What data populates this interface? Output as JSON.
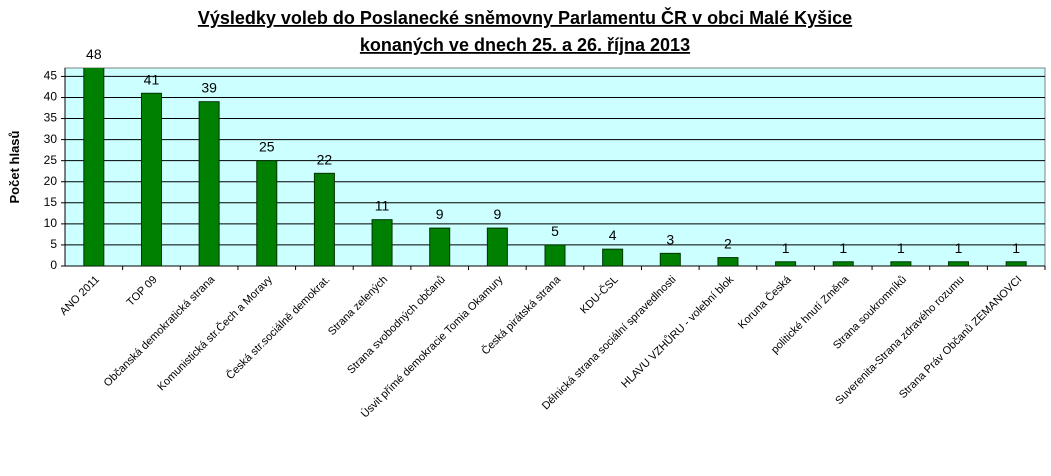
{
  "chart_data": {
    "type": "bar",
    "title": [
      "Výsledky voleb do Poslanecké sněmovny Parlamentu ČR v obci Malé Kyšice",
      "konaných ve dnech 25. a 26. října 2013"
    ],
    "y_label": "Počet hlasů",
    "categories": [
      "ANO 2011",
      "TOP 09",
      "Občanská demokratická strana",
      "Komunistická str.Čech a Moravy",
      "Česká str.sociálně demokrat.",
      "Strana zelených",
      "Strana svobodných občanů",
      "Úsvit přímé demokracie Tomia Okamury",
      "Česká pirátská strana",
      "KDU-ČSL",
      "Dělnická strana sociální spravedlnosti",
      "HLAVU VZHŮRU - volební blok",
      "Koruna Česká",
      "politické hnutí Změna",
      "Strana soukromníků",
      "Suverenita-Strana zdravého rozumu",
      "Strana Práv Občanů ZEMANOVCI"
    ],
    "values": [
      48,
      41,
      39,
      25,
      22,
      11,
      9,
      9,
      5,
      4,
      3,
      2,
      1,
      1,
      1,
      1,
      1
    ],
    "color": "#008000",
    "plot_background": "#ccffff",
    "ylim": [
      0,
      47
    ],
    "yticks": [
      0,
      5,
      10,
      15,
      20,
      25,
      30,
      35,
      40,
      45
    ],
    "grid": true
  }
}
